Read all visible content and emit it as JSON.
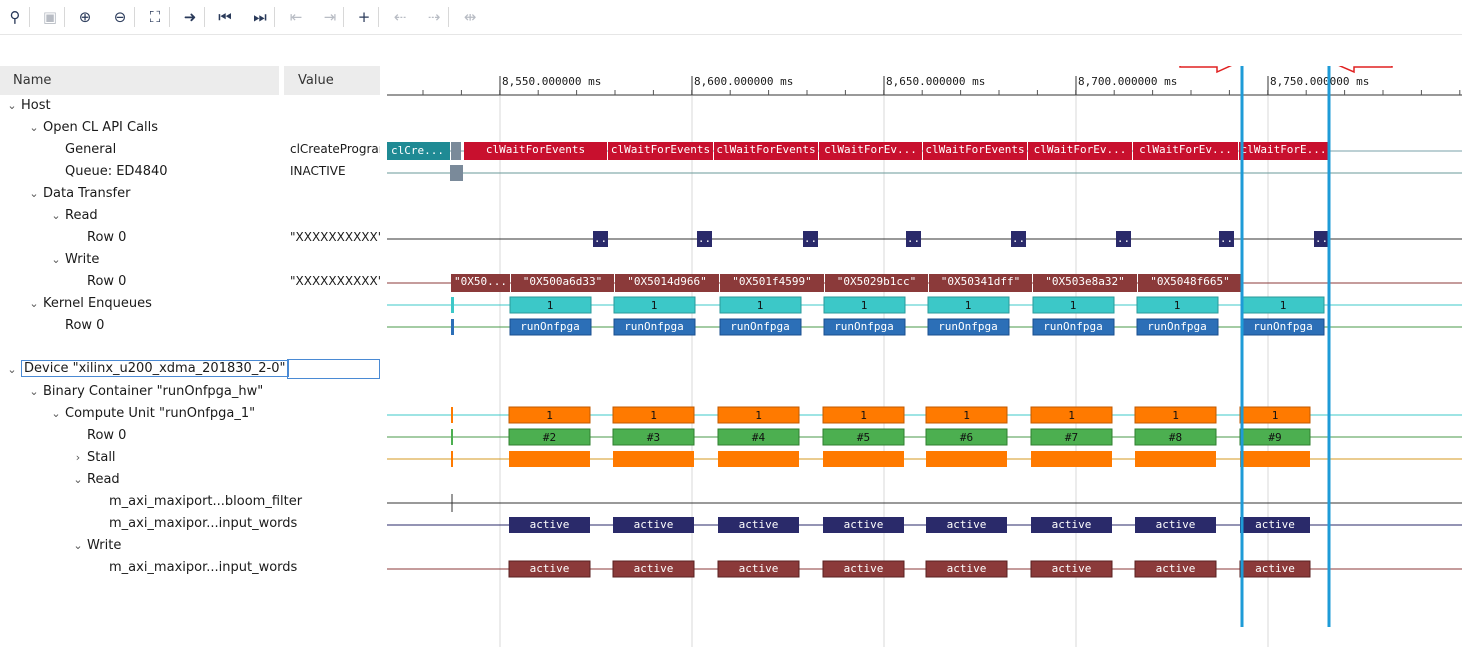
{
  "toolbar": {
    "buttons": [
      {
        "name": "search-button",
        "icon": "magnifier-icon",
        "glyph": "⚲",
        "enabled": true
      },
      {
        "name": "save-button",
        "icon": "floppy-icon",
        "glyph": "▣",
        "enabled": false
      },
      {
        "name": "zoom-in-button",
        "icon": "zoom-in-icon",
        "glyph": "⊕",
        "enabled": true
      },
      {
        "name": "zoom-out-button",
        "icon": "zoom-out-icon",
        "glyph": "⊖",
        "enabled": true
      },
      {
        "name": "zoom-fit-button",
        "icon": "fit-screen-icon",
        "glyph": "⛶",
        "enabled": true
      },
      {
        "name": "go-to-cursor-button",
        "icon": "goto-cursor-icon",
        "glyph": "➜",
        "enabled": true
      },
      {
        "name": "go-to-start-button",
        "icon": "skip-start-icon",
        "glyph": "⏮",
        "enabled": true
      },
      {
        "name": "go-to-end-button",
        "icon": "skip-end-icon",
        "glyph": "⏭",
        "enabled": true
      },
      {
        "name": "previous-transition-button",
        "icon": "prev-transition-icon",
        "glyph": "⇤",
        "enabled": false
      },
      {
        "name": "next-transition-button",
        "icon": "next-transition-icon",
        "glyph": "⇥",
        "enabled": false
      },
      {
        "name": "add-marker-button",
        "icon": "add-marker-icon",
        "glyph": "+",
        "enabled": true
      },
      {
        "name": "previous-marker-button",
        "icon": "prev-marker-icon",
        "glyph": "⇠",
        "enabled": false
      },
      {
        "name": "next-marker-button",
        "icon": "next-marker-icon",
        "glyph": "⇢",
        "enabled": false
      },
      {
        "name": "swap-cursors-button",
        "icon": "swap-cursors-icon",
        "glyph": "⇹",
        "enabled": false
      }
    ]
  },
  "columns": {
    "name": "Name",
    "value": "Value"
  },
  "tree": [
    {
      "id": "host",
      "label": "Host",
      "caret": "down",
      "value": ""
    },
    {
      "id": "opencl-api-calls",
      "label": "Open CL API Calls",
      "caret": "down",
      "value": ""
    },
    {
      "id": "general",
      "label": "General",
      "caret": "",
      "value": "clCreateProgram"
    },
    {
      "id": "queue",
      "label": "Queue: ED4840",
      "caret": "",
      "value": "INACTIVE"
    },
    {
      "id": "data-transfer",
      "label": "Data Transfer",
      "caret": "down",
      "value": ""
    },
    {
      "id": "read",
      "label": "Read",
      "caret": "down",
      "value": ""
    },
    {
      "id": "read-row0",
      "label": "Row 0",
      "caret": "",
      "value": "\"XXXXXXXXXX\""
    },
    {
      "id": "write",
      "label": "Write",
      "caret": "down",
      "value": ""
    },
    {
      "id": "write-row0",
      "label": "Row 0",
      "caret": "",
      "value": "\"XXXXXXXXXX\""
    },
    {
      "id": "kernel-enqueues",
      "label": "Kernel Enqueues",
      "caret": "down",
      "value": ""
    },
    {
      "id": "kernel-row0",
      "label": "Row 0",
      "caret": "",
      "value": ""
    },
    {
      "id": "blank",
      "label": "",
      "caret": "",
      "value": ""
    },
    {
      "id": "device",
      "label": "Device \"xilinx_u200_xdma_201830_2-0\"",
      "caret": "down",
      "value": ""
    },
    {
      "id": "binary-container",
      "label": "Binary Container \"runOnfpga_hw\"",
      "caret": "down",
      "value": ""
    },
    {
      "id": "compute-unit",
      "label": "Compute Unit \"runOnfpga_1\"",
      "caret": "down",
      "value": ""
    },
    {
      "id": "cu-row0",
      "label": "Row 0",
      "caret": "",
      "value": ""
    },
    {
      "id": "stall",
      "label": "Stall",
      "caret": "right",
      "value": ""
    },
    {
      "id": "cu-read",
      "label": "Read",
      "caret": "down",
      "value": ""
    },
    {
      "id": "maxi-bloom",
      "label": "m_axi_maxiport...bloom_filter",
      "caret": "",
      "value": ""
    },
    {
      "id": "maxi-input-read",
      "label": "m_axi_maxipor...input_words",
      "caret": "",
      "value": ""
    },
    {
      "id": "cu-write",
      "label": "Write",
      "caret": "down",
      "value": ""
    },
    {
      "id": "maxi-input-write",
      "label": "m_axi_maxipor...input_words",
      "caret": "",
      "value": ""
    }
  ],
  "timeline": {
    "unit": "ms",
    "ticks": [
      "8,550.000000 ms",
      "8,600.000000 ms",
      "8,650.000000 ms",
      "8,700.000000 ms",
      "8,750.000000 ms"
    ],
    "general_events": [
      "clCre...",
      "clWaitForEvents",
      "clWaitForEvents",
      "clWaitForEvents",
      "clWaitForEv...",
      "clWaitForEvents",
      "clWaitForEv...",
      "clWaitForEv...",
      "clWaitForE..."
    ],
    "write_events": [
      "\"0X50...",
      "\"0X500a6d33\"",
      "\"0X5014d966\"",
      "\"0X501f4599\"",
      "\"0X5029b1cc\"",
      "\"0X50341dff\"",
      "\"0X503e8a32\"",
      "\"0X5048f665\""
    ],
    "read_marker": "..",
    "kernel_enqueue_label": "1",
    "kernel_name": "runOnfpga",
    "cu_label": "1",
    "cu_runs": [
      "#2",
      "#3",
      "#4",
      "#5",
      "#6",
      "#7",
      "#8",
      "#9"
    ],
    "axi_label": "active"
  },
  "colors": {
    "api_red": "#c8102e",
    "api_teal": "#1f8a94",
    "write_brown": "#8b3a3a",
    "read_navy": "#2a2a6a",
    "kernel_cyan": "#3cc8c8",
    "kernel_blue": "#2c6fb7",
    "cu_orange": "#ff7a00",
    "cu_green": "#4caf50",
    "axi_navy": "#2a2a6a",
    "axi_brown": "#8b3a3a",
    "cursor_blue": "#1e9bd7",
    "arrow_red": "#e02020"
  }
}
